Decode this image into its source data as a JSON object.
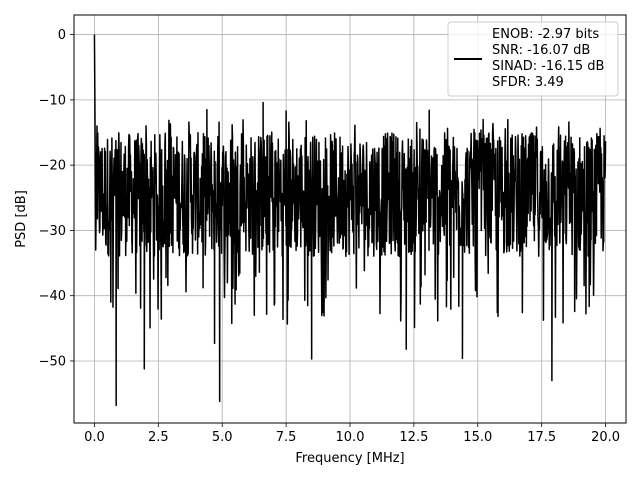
{
  "chart_data": {
    "type": "line",
    "title": "",
    "xlabel": "Frequency [MHz]",
    "ylabel": "PSD [dB]",
    "xlim": [
      -0.8,
      20.8
    ],
    "ylim": [
      -59.5,
      3
    ],
    "xticks": [
      0.0,
      2.5,
      5.0,
      7.5,
      10.0,
      12.5,
      15.0,
      17.5,
      20.0
    ],
    "xtick_labels": [
      "0.0",
      "2.5",
      "5.0",
      "7.5",
      "10.0",
      "12.5",
      "15.0",
      "17.5",
      "20.0"
    ],
    "yticks": [
      0,
      -10,
      -20,
      -30,
      -40,
      -50
    ],
    "ytick_labels": [
      "0",
      "−10",
      "−20",
      "−30",
      "−40",
      "−50"
    ],
    "grid": true,
    "line_color": "#000000",
    "legend_position": "top-right",
    "legend_entries": [
      "ENOB: -2.97 bits",
      "SNR: -16.07 dB",
      "SINAD: -16.15 dB",
      "SFDR: 3.49"
    ],
    "series": [
      {
        "x_range": [
          0,
          20
        ],
        "dc_peak": [
          [
            0,
            0
          ],
          [
            0.02,
            -12
          ],
          [
            0.05,
            -33
          ],
          [
            0.1,
            -14
          ]
        ],
        "noise_band_db": [
          -34,
          -15
        ],
        "notable_points": [
          {
            "x": 0.85,
            "y": -56.8
          },
          {
            "x": 4.9,
            "y": -56.2
          },
          {
            "x": 17.9,
            "y": -53.0
          },
          {
            "x": 1.95,
            "y": -51.2
          },
          {
            "x": 8.5,
            "y": -49.7
          },
          {
            "x": 14.4,
            "y": -49.6
          },
          {
            "x": 12.2,
            "y": -48.2
          },
          {
            "x": 4.7,
            "y": -47.3
          },
          {
            "x": 6.6,
            "y": -10.4
          },
          {
            "x": 4.4,
            "y": -11.5
          },
          {
            "x": 7.5,
            "y": -11.7
          },
          {
            "x": 13.1,
            "y": -11.6
          }
        ]
      }
    ]
  }
}
